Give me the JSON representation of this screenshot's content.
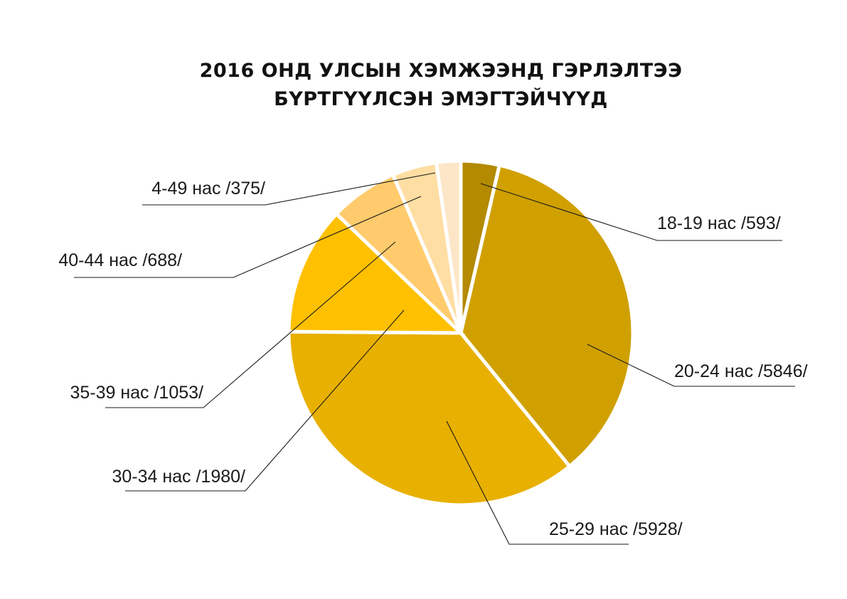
{
  "chart_data": {
    "type": "pie",
    "title_lines": [
      "2016 ОНД УЛСЫН ХЭМЖЭЭНД ГЭРЛЭЛТЭЭ",
      "БҮРТГҮҮЛСЭН ЭМЭГТЭЙЧҮҮД"
    ],
    "slices": [
      {
        "label": "18-19 нас /593/",
        "value": 593,
        "color": "#B38A00"
      },
      {
        "label": "20-24 нас /5846/",
        "value": 5846,
        "color": "#D0A000"
      },
      {
        "label": "25-29 нас /5928/",
        "value": 5928,
        "color": "#E8B000"
      },
      {
        "label": "30-34 нас /1980/",
        "value": 1980,
        "color": "#FFC000"
      },
      {
        "label": "35-39 нас /1053/",
        "value": 1053,
        "color": "#FFCB6C"
      },
      {
        "label": "40-44 нас /688/",
        "value": 688,
        "color": "#FFDEA3"
      },
      {
        "label": "4-49 нас /375/",
        "value": 375,
        "color": "#FDE6C8"
      }
    ]
  }
}
